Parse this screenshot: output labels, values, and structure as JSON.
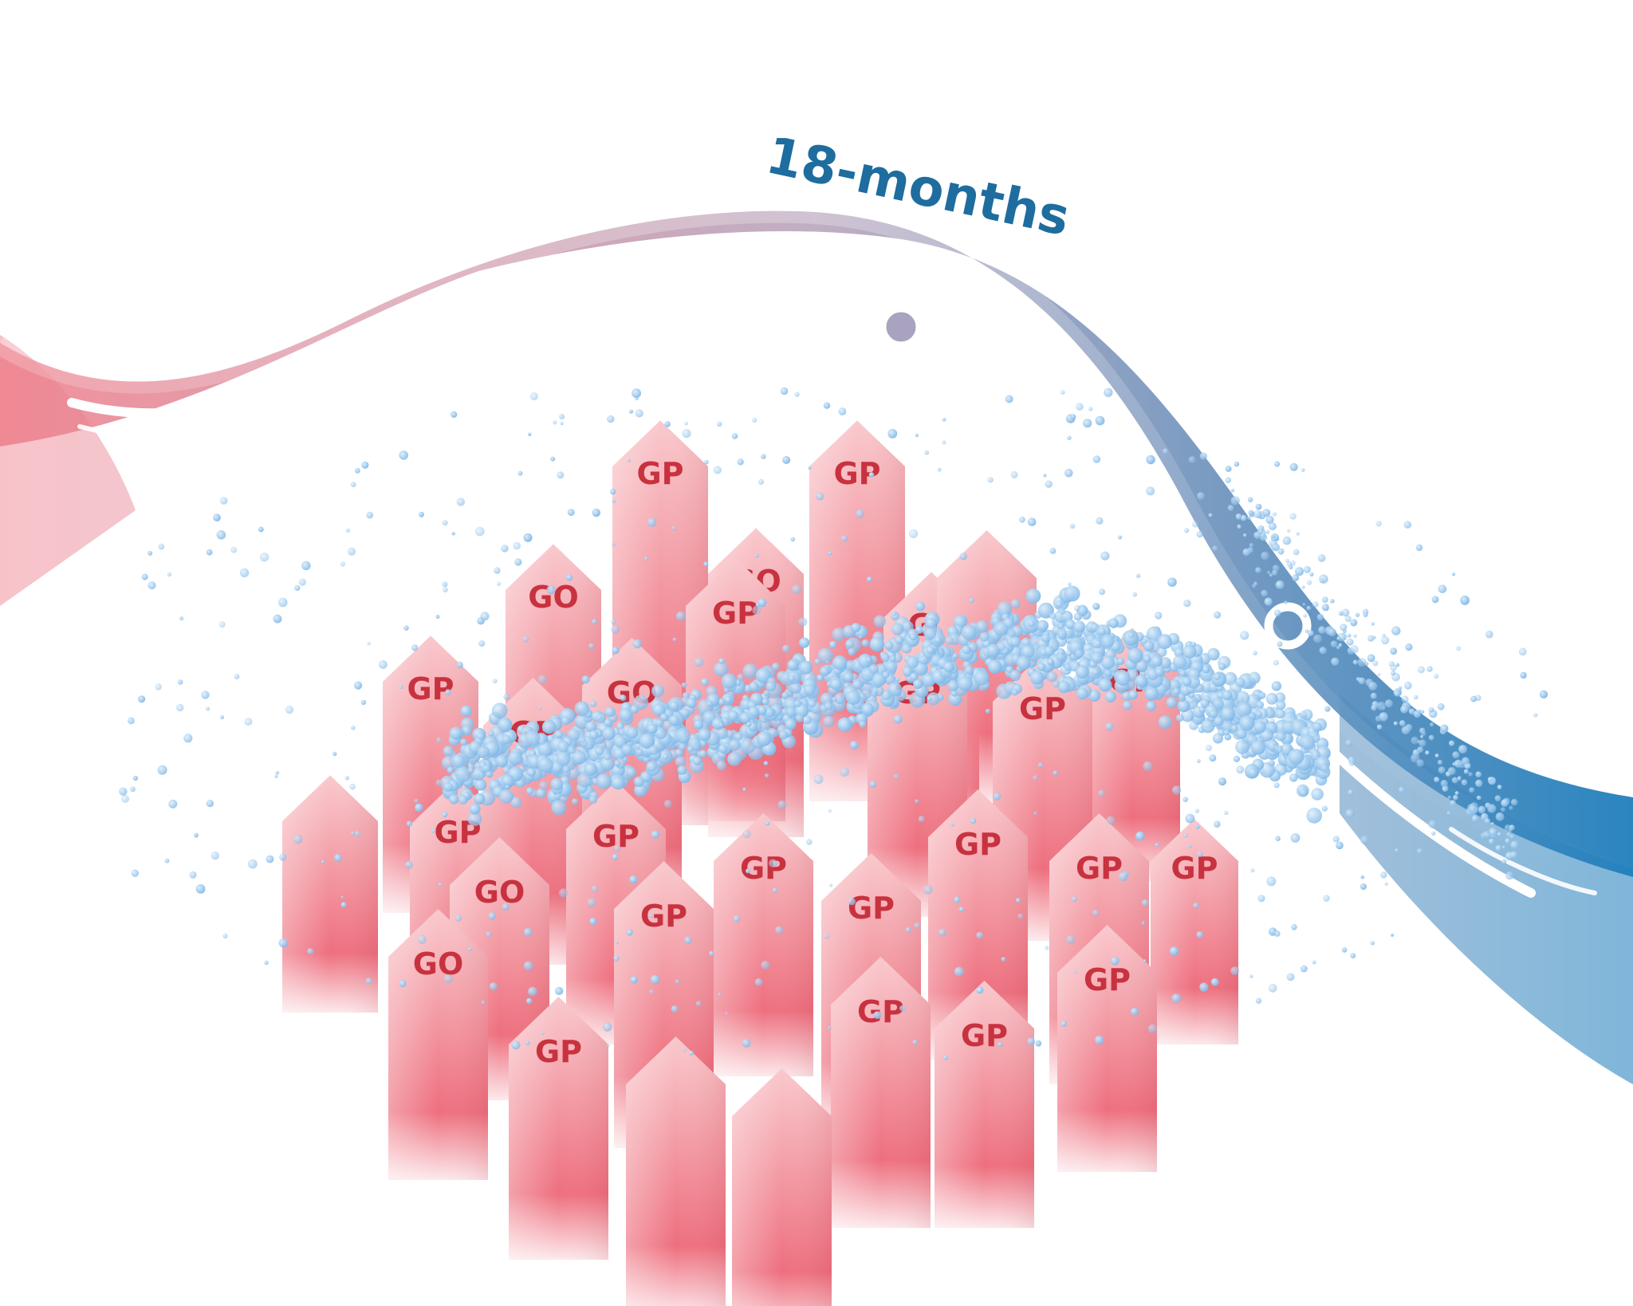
{
  "timeline": {
    "label": "18-months",
    "start_color": "#ee7f8b",
    "mid_color": "#b9a6bd",
    "end_color": "#1f7fbd",
    "milestone_count": 5
  },
  "pillars": {
    "color_top": "#f9c9cd",
    "color_bottom": "#ee6f7e",
    "label_color": "#c8323f",
    "items": [
      {
        "label": "GP"
      },
      {
        "label": "GP"
      },
      {
        "label": "GO"
      },
      {
        "label": "GO"
      },
      {
        "label": "GP"
      },
      {
        "label": "GP"
      },
      {
        "label": ""
      },
      {
        "label": "GP"
      },
      {
        "label": "GP"
      },
      {
        "label": "GO"
      },
      {
        "label": "GP"
      },
      {
        "label": "GP"
      },
      {
        "label": "GP"
      },
      {
        "label": ""
      },
      {
        "label": "GP"
      },
      {
        "label": "GO"
      },
      {
        "label": "GP"
      },
      {
        "label": "GP"
      },
      {
        "label": "GP"
      },
      {
        "label": "GP"
      },
      {
        "label": "GP"
      },
      {
        "label": "GP"
      },
      {
        "label": ""
      },
      {
        "label": "GO"
      },
      {
        "label": "GP"
      },
      {
        "label": "GP"
      },
      {
        "label": "GP"
      },
      {
        "label": "GP"
      },
      {
        "label": ""
      },
      {
        "label": "GP"
      },
      {
        "label": ""
      }
    ]
  },
  "particles": {
    "color": "#7fb6e6",
    "highlight": "#d8ecfb"
  }
}
